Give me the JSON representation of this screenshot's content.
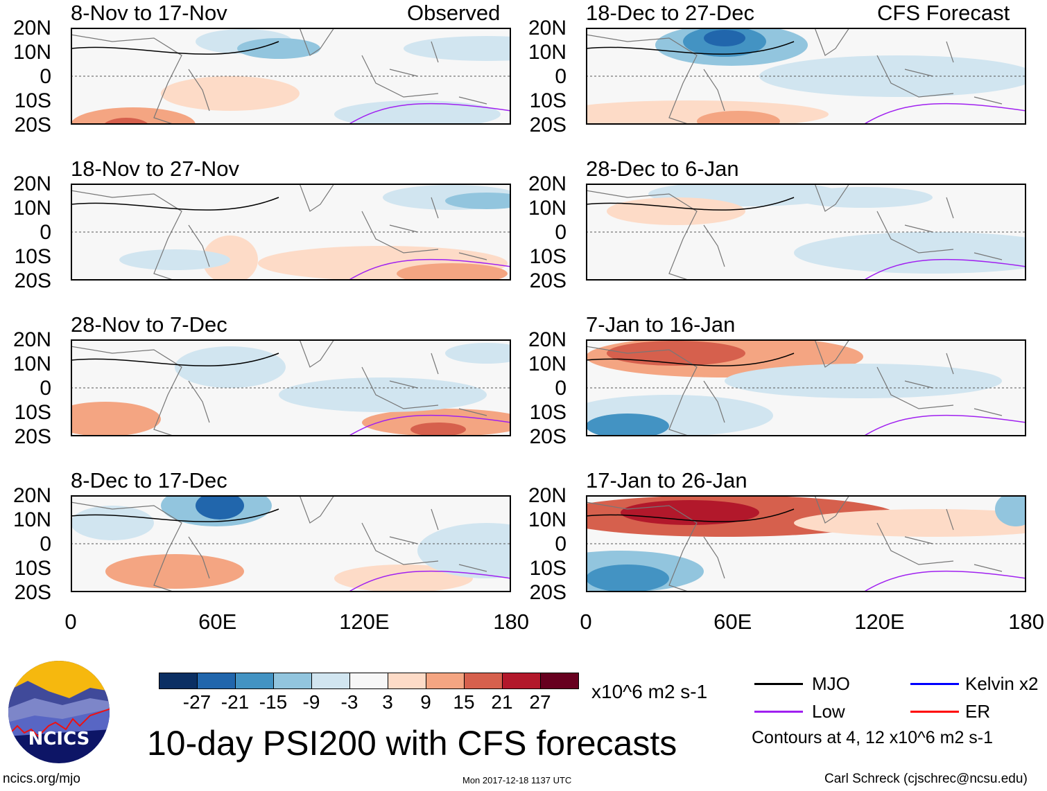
{
  "title": "10-day PSI200 with CFS forecasts",
  "left_column_label": "Observed",
  "right_column_label": "CFS Forecast",
  "panels_left": [
    {
      "title": "8-Nov to 17-Nov"
    },
    {
      "title": "18-Nov to 27-Nov"
    },
    {
      "title": "28-Nov to 7-Dec"
    },
    {
      "title": "8-Dec to 17-Dec"
    }
  ],
  "panels_right": [
    {
      "title": "18-Dec to 27-Dec"
    },
    {
      "title": "28-Dec to 6-Jan"
    },
    {
      "title": "7-Jan to 16-Jan"
    },
    {
      "title": "17-Jan to 26-Jan"
    }
  ],
  "lat_labels": [
    "20N",
    "10N",
    "0",
    "10S",
    "20S"
  ],
  "lon_labels": [
    "0",
    "60E",
    "120E",
    "180"
  ],
  "colorbar": {
    "colors": [
      "#0b2f63",
      "#2166ac",
      "#4393c3",
      "#92c5de",
      "#d1e5f0",
      "#f7f7f7",
      "#fddbc7",
      "#f4a582",
      "#d6604d",
      "#b2182b",
      "#67001f"
    ],
    "labels": [
      "-27",
      "-21",
      "-15",
      "-9",
      "-3",
      "3",
      "9",
      "15",
      "21",
      "27"
    ],
    "units": "x10^6 m2 s-1"
  },
  "legend": {
    "items": [
      {
        "label": "MJO",
        "color": "#000000"
      },
      {
        "label": "Kelvin x2",
        "color": "#0000ff"
      },
      {
        "label": "Low",
        "color": "#a020f0"
      },
      {
        "label": "ER",
        "color": "#ff0000"
      }
    ],
    "contours_note": "Contours at 4, 12 x10^6 m2 s-1"
  },
  "logo_text": "NCICS",
  "footer": {
    "url": "ncics.org/mjo",
    "timestamp": "Mon 2017-12-18 1137 UTC",
    "credit": "Carl Schreck (cjschrec@ncsu.edu)"
  }
}
